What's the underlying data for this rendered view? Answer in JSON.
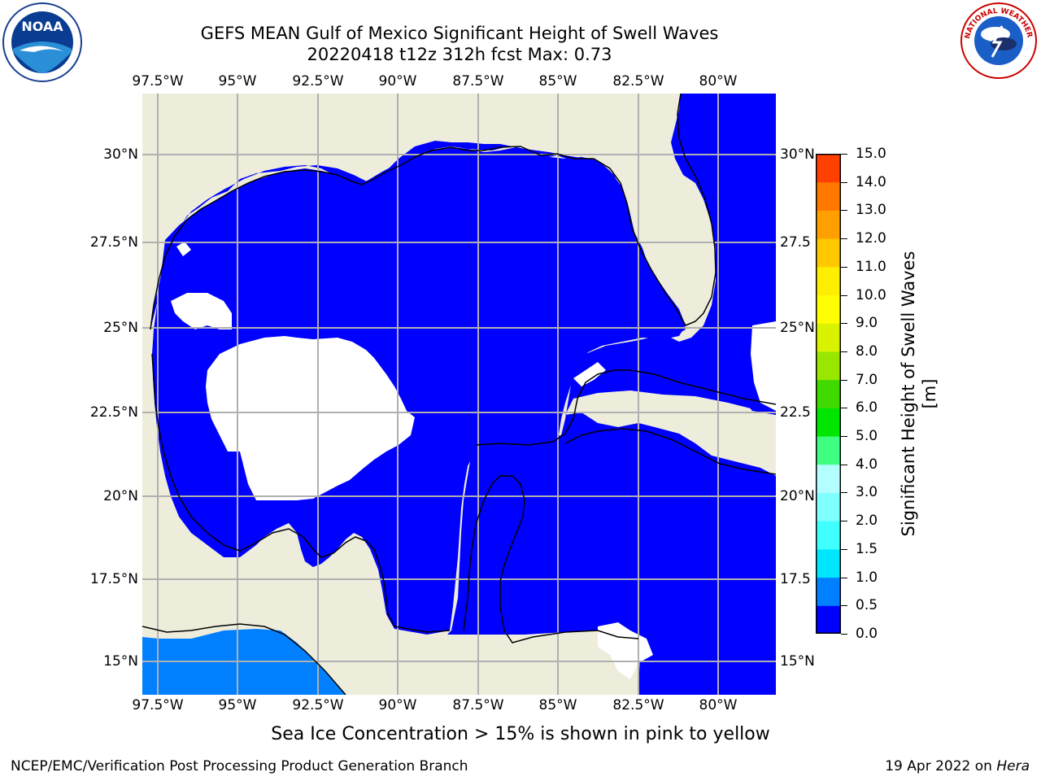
{
  "title": {
    "line1": "GEFS MEAN Gulf of Mexico Significant Height of Swell Waves",
    "line2": "20220418 t12z 312h fcst   Max: 0.73"
  },
  "map": {
    "lon_labels": [
      "97.5°W",
      "95°W",
      "92.5°W",
      "90°W",
      "87.5°W",
      "85°W",
      "82.5°W",
      "80°W"
    ],
    "lat_labels_left": [
      "30°N",
      "27.5°N",
      "25°N",
      "22.5°N",
      "20°N",
      "17.5°N",
      "15°N"
    ],
    "lat_labels_right": [
      "30°N",
      "27.5",
      "25°N",
      "22.5",
      "20°N",
      "17.5",
      "15°N"
    ],
    "colors": {
      "land": "#eeeddc",
      "ocean_low": "#0000ff",
      "ocean_mid": "#0080ff",
      "nodata": "#ffffff",
      "grid": "#b0b0b0"
    }
  },
  "colorbar": {
    "label": "Significant Height of Swell Waves [m]",
    "ticks": [
      "0.0",
      "0.5",
      "1.0",
      "1.5",
      "2.0",
      "3.0",
      "4.0",
      "5.0",
      "6.0",
      "7.0",
      "8.0",
      "9.0",
      "10.0",
      "11.0",
      "12.0",
      "13.0",
      "14.0",
      "15.0"
    ],
    "colors": [
      "#0000ff",
      "#0080ff",
      "#00e6ff",
      "#40ffff",
      "#80ffff",
      "#b3ffff",
      "#40ff80",
      "#00e600",
      "#40d900",
      "#99e600",
      "#d9f200",
      "#ffff00",
      "#ffee00",
      "#ffc800",
      "#ffa000",
      "#ff7800",
      "#ff4000"
    ]
  },
  "note": "Sea Ice Concentration > 15% is shown in pink to yellow",
  "footer": {
    "left": "NCEP/EMC/Verification Post Processing Product Generation Branch",
    "date": "19 Apr 2022 on ",
    "host": "Hera"
  },
  "logos": {
    "left": "noaa-logo",
    "right": "national-weather-service-logo",
    "nws_text": "NATIONAL WEATHER SERVICE",
    "noaa_text": "NOAA"
  }
}
